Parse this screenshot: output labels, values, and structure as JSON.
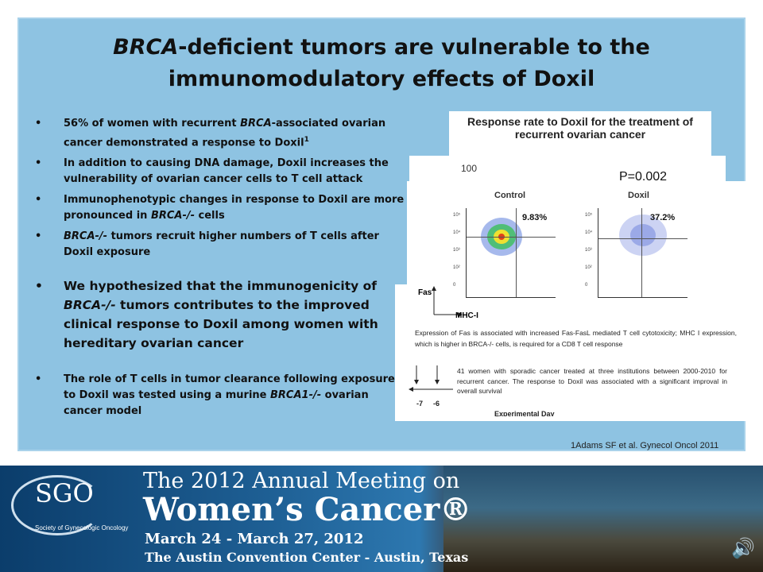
{
  "slide": {
    "title_italic": "BRCA",
    "title_rest": "-deficient tumors are vulnerable to the immunomodulatory effects of Doxil",
    "bullets": [
      {
        "pre": "56% of women with recurrent ",
        "ital": "BRCA",
        "post": "-associated ovarian cancer demonstrated a response to Doxil",
        "sup": "1"
      },
      {
        "pre": "In addition to causing DNA damage, Doxil increases the vulnerability of ovarian cancer cells to T cell attack",
        "ital": "",
        "post": "",
        "sup": ""
      },
      {
        "pre": "Immunophenotypic changes in response to Doxil are more pronounced in ",
        "ital": "BRCA-/-",
        "post": " cells",
        "sup": ""
      },
      {
        "pre": "",
        "ital": "BRCA-/-",
        "post": " tumors recruit higher numbers of T cells after Doxil exposure",
        "sup": ""
      },
      {
        "pre": "We hypothesized that the immunogenicity of ",
        "ital": "BRCA-/-",
        "post": " tumors contributes to the improved clinical response to Doxil among women with hereditary ovarian cancer",
        "sup": ""
      },
      {
        "pre": "The role of T cells in tumor clearance following exposure to Doxil was tested using a murine ",
        "ital": "BRCA1-/-",
        "post": " ovarian cancer model",
        "sup": ""
      }
    ],
    "citation": "1Adams SF et al. Gynecol Oncol 2011"
  },
  "figures": {
    "response_title": "Response rate to Doxil for the treatment of recurrent ovarian cancer",
    "axis_100": "100",
    "p_value": "P=0.002",
    "flow": {
      "control_label": "Control",
      "doxil_label": "Doxil",
      "control_pct": "9.83%",
      "doxil_pct": "37.2%",
      "y_axis": "Fas",
      "x_axis": "MHC-I",
      "ticks": [
        "10⁵",
        "10⁴",
        "10³",
        "10²",
        "0"
      ]
    },
    "caption_fas": "Expression of Fas is associated with increased Fas-FasL mediated T cell cytotoxicity; MHC I expression, which is higher in BRCA-/- cells, is required for a CD8 T cell response",
    "caption_sporadic": "41 women with sporadic cancer treated at three institutions between 2000-2010 for recurrent cancer. The response to Doxil was associated with a significant improval in overall survival",
    "day_labels": [
      "-7",
      "-6"
    ],
    "experimental_day": "Experimental Day"
  },
  "banner": {
    "logo": "SGO",
    "logo_sub": "Society of Gynecologic Oncology",
    "line1": "The 2012 Annual Meeting on",
    "line2": "Women’s Cancer®",
    "line3": "March 24 - March 27, 2012",
    "line4": "The Austin Convention Center - Austin, Texas"
  },
  "icons": {
    "speaker": "speaker-icon"
  }
}
